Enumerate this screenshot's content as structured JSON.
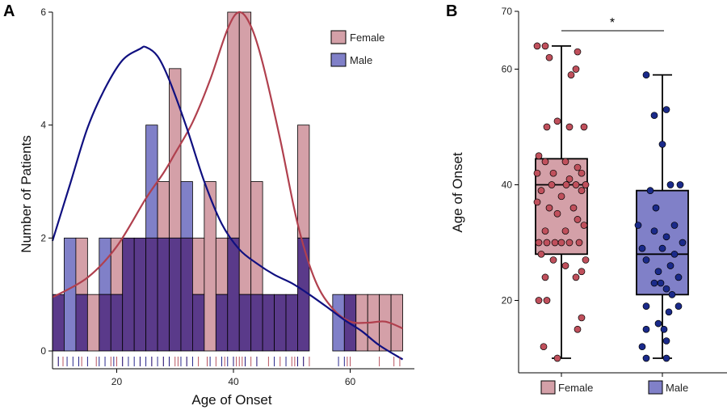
{
  "colors": {
    "female_fill": "#d4a0a8",
    "male_fill": "#8080c8",
    "overlap_fill": "#5a3a8a",
    "female_line": "#b0404e",
    "male_line": "#101080",
    "female_point": "#c0505c",
    "male_point": "#1a2a8a"
  },
  "chart_data": [
    {
      "type": "bar",
      "panel": "A",
      "xlabel": "Age of Onset",
      "ylabel": "Number of Patients",
      "xlim": [
        9,
        71
      ],
      "ylim": [
        0,
        6
      ],
      "x_ticks": [
        20,
        40,
        60
      ],
      "y_ticks": [
        0,
        2,
        4,
        6
      ],
      "legend_position": "top-right",
      "bin_width": 2,
      "series": [
        {
          "name": "Female",
          "bin_starts": [
            9,
            13,
            15,
            17,
            19,
            21,
            23,
            25,
            27,
            29,
            31,
            33,
            35,
            37,
            39,
            41,
            43,
            45,
            47,
            49,
            51,
            59,
            61,
            63,
            65,
            67
          ],
          "values": [
            1,
            2,
            1,
            1,
            2,
            2,
            2,
            2,
            3,
            5,
            2,
            2,
            3,
            2,
            6,
            6,
            3,
            1,
            1,
            1,
            4,
            1,
            1,
            1,
            1,
            1
          ]
        },
        {
          "name": "Male",
          "bin_starts": [
            9,
            11,
            13,
            17,
            19,
            21,
            23,
            25,
            27,
            29,
            31,
            33,
            37,
            39,
            41,
            43,
            45,
            47,
            49,
            51,
            57,
            59
          ],
          "values": [
            1,
            2,
            1,
            2,
            1,
            2,
            2,
            4,
            2,
            2,
            3,
            1,
            1,
            2,
            1,
            1,
            1,
            1,
            1,
            2,
            1,
            1
          ]
        }
      ],
      "density": {
        "Female": {
          "x": [
            9,
            15,
            20,
            25,
            28,
            30,
            33,
            36,
            39,
            41,
            43,
            45,
            48,
            51,
            54,
            57,
            60,
            63,
            66,
            69
          ],
          "y": [
            0.95,
            1.3,
            1.85,
            2.7,
            3.15,
            3.5,
            4.05,
            4.8,
            5.7,
            6.0,
            5.75,
            5.1,
            3.75,
            2.25,
            1.25,
            0.75,
            0.52,
            0.5,
            0.52,
            0.4
          ]
        },
        "Male": {
          "x": [
            9,
            12,
            15,
            18,
            21,
            24,
            25,
            27,
            29,
            32,
            35,
            38,
            41,
            44,
            47,
            50,
            53,
            56,
            59,
            62,
            65,
            69
          ],
          "y": [
            1.95,
            2.95,
            3.95,
            4.65,
            5.15,
            5.35,
            5.38,
            5.22,
            4.8,
            3.95,
            3.0,
            2.25,
            1.8,
            1.55,
            1.35,
            1.2,
            1.0,
            0.78,
            0.55,
            0.35,
            0.1,
            -0.15
          ]
        }
      },
      "rug": {
        "Female": [
          10,
          10.8,
          14,
          16.5,
          19,
          20,
          21,
          24,
          26,
          28,
          29,
          30,
          30.5,
          32,
          34,
          35.5,
          37,
          38.5,
          40,
          40.5,
          41,
          41.5,
          42,
          43,
          44,
          46,
          48,
          50,
          50.5,
          51,
          52,
          53,
          59.5,
          60,
          65,
          67.5,
          68.5
        ],
        "Male": [
          10,
          11.5,
          12.5,
          13.5,
          15,
          17,
          18,
          19.5,
          21,
          22,
          23,
          24,
          25,
          26,
          27,
          28,
          29,
          31,
          32,
          33,
          36,
          38,
          39,
          40,
          42,
          44,
          47,
          49,
          51,
          52,
          58,
          59
        ]
      }
    },
    {
      "type": "box",
      "panel": "B",
      "ylabel": "Age of Onset",
      "ylim": [
        8,
        70
      ],
      "y_ticks": [
        20,
        40,
        60,
        70
      ],
      "categories": [
        "Female",
        "Male"
      ],
      "significance": "*",
      "boxes": [
        {
          "name": "Female",
          "min": 10,
          "q1": 28,
          "median": 40,
          "q3": 44.5,
          "max": 64
        },
        {
          "name": "Male",
          "min": 10,
          "q1": 21,
          "median": 28,
          "q3": 39,
          "max": 59
        }
      ],
      "points": {
        "Female": [
          [
            -0.3,
            64
          ],
          [
            -0.2,
            64
          ],
          [
            0.2,
            63
          ],
          [
            -0.15,
            62
          ],
          [
            0.18,
            60
          ],
          [
            0.12,
            59
          ],
          [
            -0.05,
            51
          ],
          [
            -0.18,
            50
          ],
          [
            0.1,
            50
          ],
          [
            0.28,
            50
          ],
          [
            -0.28,
            45
          ],
          [
            -0.2,
            44
          ],
          [
            0.05,
            44
          ],
          [
            0.2,
            43
          ],
          [
            -0.3,
            42
          ],
          [
            -0.1,
            42
          ],
          [
            0.25,
            42
          ],
          [
            0.1,
            41
          ],
          [
            -0.12,
            40
          ],
          [
            0.06,
            40
          ],
          [
            0.18,
            40
          ],
          [
            0.3,
            40
          ],
          [
            -0.25,
            39
          ],
          [
            0.25,
            39
          ],
          [
            0.0,
            38
          ],
          [
            -0.3,
            37
          ],
          [
            -0.15,
            36
          ],
          [
            0.15,
            36
          ],
          [
            -0.05,
            35
          ],
          [
            0.2,
            34
          ],
          [
            0.28,
            33
          ],
          [
            -0.2,
            32
          ],
          [
            0.05,
            32
          ],
          [
            -0.28,
            30
          ],
          [
            -0.18,
            30
          ],
          [
            -0.08,
            30
          ],
          [
            0.0,
            30
          ],
          [
            0.1,
            30
          ],
          [
            0.22,
            30
          ],
          [
            0.3,
            27
          ],
          [
            -0.25,
            28
          ],
          [
            -0.1,
            27
          ],
          [
            0.05,
            26
          ],
          [
            0.25,
            25
          ],
          [
            0.18,
            24
          ],
          [
            -0.2,
            24
          ],
          [
            -0.28,
            20
          ],
          [
            -0.18,
            20
          ],
          [
            0.25,
            17
          ],
          [
            0.2,
            15
          ],
          [
            -0.22,
            12
          ],
          [
            -0.05,
            10
          ]
        ],
        "Male": [
          [
            -0.2,
            59
          ],
          [
            0.05,
            53
          ],
          [
            -0.1,
            52
          ],
          [
            0.0,
            47
          ],
          [
            0.1,
            40
          ],
          [
            0.22,
            40
          ],
          [
            -0.15,
            39
          ],
          [
            -0.08,
            36
          ],
          [
            -0.3,
            33
          ],
          [
            0.15,
            33
          ],
          [
            -0.1,
            32
          ],
          [
            0.05,
            31
          ],
          [
            0.25,
            30
          ],
          [
            -0.25,
            29
          ],
          [
            0.0,
            29
          ],
          [
            0.15,
            28
          ],
          [
            -0.2,
            27
          ],
          [
            0.1,
            26
          ],
          [
            -0.05,
            25
          ],
          [
            0.2,
            24
          ],
          [
            -0.1,
            23
          ],
          [
            -0.02,
            23
          ],
          [
            0.05,
            22
          ],
          [
            0.12,
            21
          ],
          [
            -0.2,
            19
          ],
          [
            0.2,
            19
          ],
          [
            0.08,
            18
          ],
          [
            -0.05,
            16
          ],
          [
            0.02,
            15
          ],
          [
            -0.2,
            15
          ],
          [
            0.05,
            13
          ],
          [
            -0.25,
            12
          ],
          [
            -0.2,
            10
          ],
          [
            0.05,
            10
          ]
        ]
      }
    }
  ],
  "panel_a": {
    "letter": "A",
    "xlabel": "Age of Onset",
    "ylabel": "Number of Patients",
    "legend": [
      {
        "name": "Female",
        "color": "#d4a0a8"
      },
      {
        "name": "Male",
        "color": "#8080c8"
      }
    ]
  },
  "panel_b": {
    "letter": "B",
    "ylabel": "Age of Onset",
    "significance": "*",
    "legend": [
      {
        "name": "Female",
        "color": "#d4a0a8"
      },
      {
        "name": "Male",
        "color": "#8080c8"
      }
    ]
  }
}
